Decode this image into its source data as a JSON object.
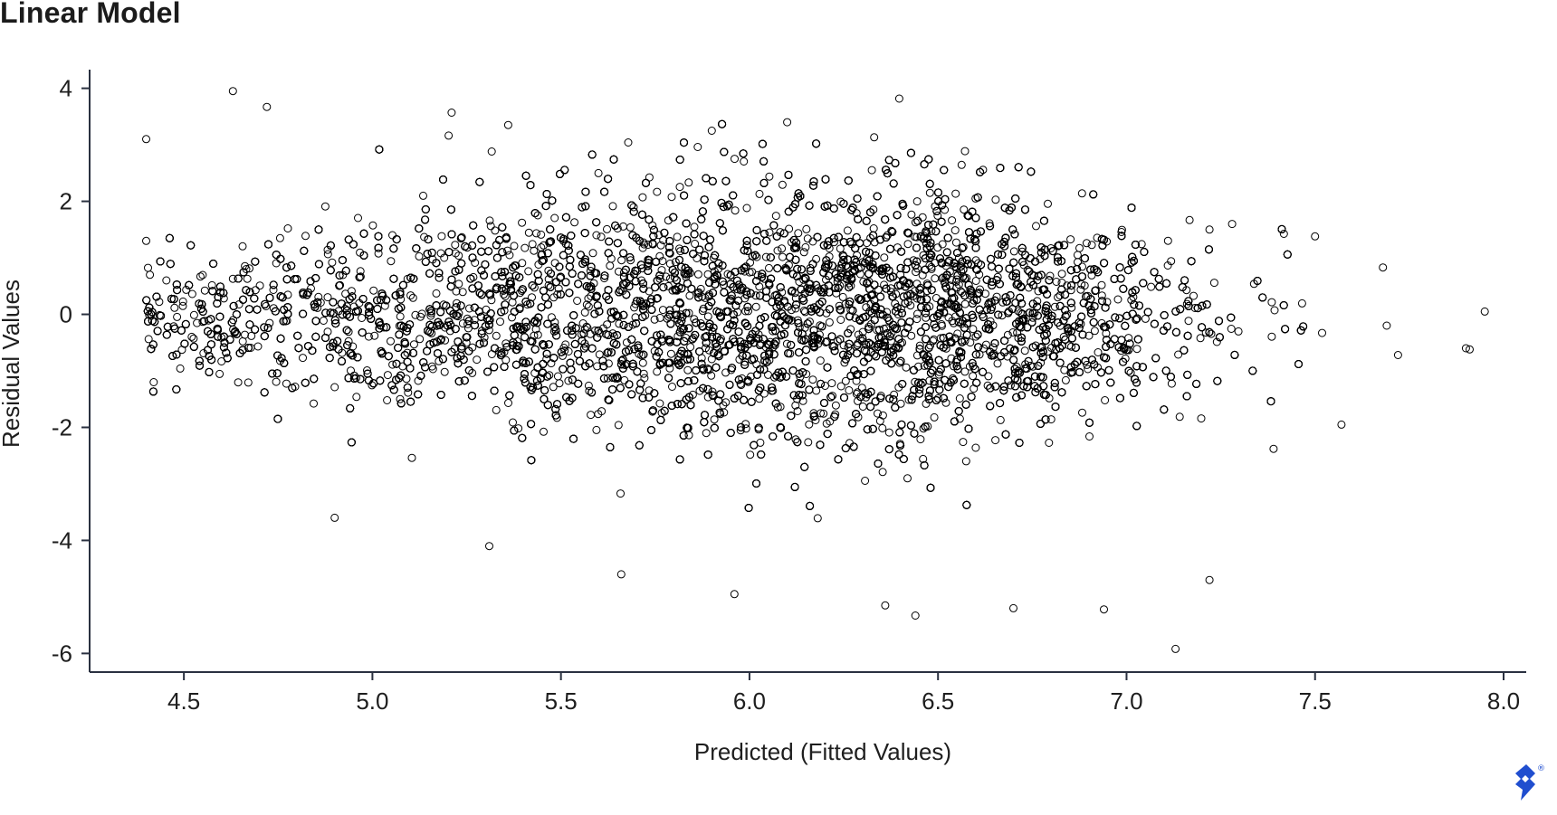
{
  "chart_data": {
    "type": "scatter",
    "title": "Linear Model",
    "xlabel": "Predicted (Fitted Values)",
    "ylabel": "Residual Values",
    "xlim": [
      4.25,
      8.06
    ],
    "ylim": [
      -6.33,
      4.33
    ],
    "xticks": [
      "4.5",
      "5.0",
      "5.5",
      "6.0",
      "6.5",
      "7.0",
      "7.5",
      "8.0"
    ],
    "yticks": [
      "4",
      "2",
      "0",
      "-2",
      "-4",
      "-6"
    ],
    "marker": "open-circle",
    "marker_color": "#000000",
    "grid": false,
    "legend": "none",
    "notable_points": [
      {
        "x": 4.4,
        "y": 3.1
      },
      {
        "x": 4.63,
        "y": 3.95
      },
      {
        "x": 4.72,
        "y": 3.67
      },
      {
        "x": 5.21,
        "y": 3.57
      },
      {
        "x": 5.36,
        "y": 3.35
      },
      {
        "x": 5.9,
        "y": 3.25
      },
      {
        "x": 6.1,
        "y": 3.4
      },
      {
        "x": 4.4,
        "y": 1.3
      },
      {
        "x": 4.41,
        "y": 0.7
      },
      {
        "x": 4.42,
        "y": -1.2
      },
      {
        "x": 4.9,
        "y": -3.6
      },
      {
        "x": 5.31,
        "y": -4.1
      },
      {
        "x": 5.66,
        "y": -4.6
      },
      {
        "x": 5.96,
        "y": -4.95
      },
      {
        "x": 6.44,
        "y": -5.33
      },
      {
        "x": 6.36,
        "y": -5.15
      },
      {
        "x": 6.7,
        "y": -5.2
      },
      {
        "x": 6.94,
        "y": -5.22
      },
      {
        "x": 7.13,
        "y": -5.92
      },
      {
        "x": 7.22,
        "y": -4.7
      },
      {
        "x": 7.22,
        "y": 1.5
      },
      {
        "x": 7.28,
        "y": 1.6
      },
      {
        "x": 7.5,
        "y": 1.38
      },
      {
        "x": 7.68,
        "y": 0.83
      },
      {
        "x": 7.72,
        "y": -0.72
      },
      {
        "x": 7.9,
        "y": -0.6
      },
      {
        "x": 7.91,
        "y": -0.62
      },
      {
        "x": 7.95,
        "y": 0.05
      },
      {
        "x": 7.57,
        "y": -1.95
      },
      {
        "x": 7.39,
        "y": -2.38
      },
      {
        "x": 7.69,
        "y": -0.2
      }
    ],
    "density": {
      "point_count": 16000,
      "x_center": 6.05,
      "x_spread": 0.62,
      "x_range": [
        4.4,
        7.95
      ],
      "y_spread": 1.25,
      "y_range": [
        -5.9,
        3.95
      ]
    }
  },
  "logo": {
    "icon": "toptal-logo-icon",
    "mark": "®",
    "color": "#204ecf"
  }
}
